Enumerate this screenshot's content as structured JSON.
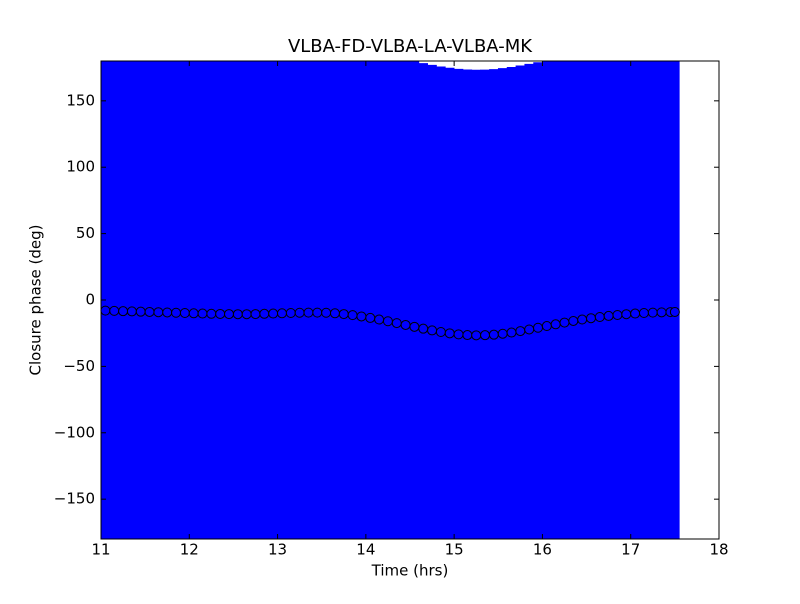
{
  "chart_data": {
    "type": "errorbar",
    "title": "VLBA-FD-VLBA-LA-VLBA-MK",
    "xlabel": "Time (hrs)",
    "ylabel": "Closure phase (deg)",
    "xlim": [
      11,
      18
    ],
    "ylim": [
      -180,
      180
    ],
    "xticks": [
      11,
      12,
      13,
      14,
      15,
      16,
      17,
      18
    ],
    "yticks": [
      {
        "value": -150,
        "label": "−150"
      },
      {
        "value": -100,
        "label": "−100"
      },
      {
        "value": -50,
        "label": "−50"
      },
      0,
      50,
      100,
      150
    ],
    "series": [
      {
        "color": "#0000ff",
        "x": [
          11.05,
          11.15,
          11.25,
          11.35,
          11.45,
          11.55,
          11.65,
          11.75,
          11.85,
          11.95,
          12.05,
          12.15,
          12.25,
          12.35,
          12.45,
          12.55,
          12.65,
          12.75,
          12.85,
          12.95,
          13.05,
          13.15,
          13.25,
          13.35,
          13.45,
          13.55,
          13.65,
          13.75,
          13.85,
          13.95,
          14.05,
          14.15,
          14.25,
          14.35,
          14.45,
          14.55,
          14.65,
          14.75,
          14.85,
          14.95,
          15.05,
          15.15,
          15.25,
          15.35,
          15.45,
          15.55,
          15.65,
          15.75,
          15.85,
          15.95,
          16.05,
          16.15,
          16.25,
          16.35,
          16.45,
          16.55,
          16.65,
          16.75,
          16.85,
          16.95,
          17.05,
          17.15,
          17.25,
          17.35,
          17.45,
          17.5
        ],
        "values": [
          -8,
          -8.2,
          -8.4,
          -8.6,
          -8.8,
          -9,
          -9.2,
          -9.4,
          -9.6,
          -9.8,
          -10,
          -10.2,
          -10.4,
          -10.5,
          -10.6,
          -10.7,
          -10.7,
          -10.6,
          -10.4,
          -10.2,
          -10,
          -9.8,
          -9.6,
          -9.5,
          -9.5,
          -9.6,
          -10,
          -10.6,
          -11.4,
          -12.4,
          -13.5,
          -14.7,
          -16,
          -17.4,
          -18.8,
          -20.2,
          -21.6,
          -22.9,
          -24.1,
          -25.1,
          -25.9,
          -26.4,
          -26.6,
          -26.5,
          -26.1,
          -25.4,
          -24.5,
          -23.4,
          -22.2,
          -20.9,
          -19.6,
          -18.3,
          -17,
          -15.8,
          -14.7,
          -13.7,
          -12.8,
          -12,
          -11.3,
          -10.7,
          -10.2,
          -9.8,
          -9.5,
          -9.3,
          -9.1,
          -9
        ],
        "errors": [
          200,
          200,
          200,
          200,
          200,
          200,
          200,
          200,
          200,
          200,
          200,
          200,
          200,
          200,
          200,
          200,
          200,
          200,
          200,
          200,
          200,
          200,
          200,
          200,
          200,
          200,
          200,
          200,
          200,
          200,
          200,
          200,
          200,
          200,
          200,
          200,
          200,
          200,
          200,
          200,
          200,
          200,
          200,
          200,
          200,
          200,
          200,
          200,
          200,
          200,
          200,
          200,
          200,
          200,
          200,
          200,
          200,
          200,
          200,
          200,
          200,
          200,
          200,
          200,
          200,
          200
        ]
      }
    ]
  }
}
